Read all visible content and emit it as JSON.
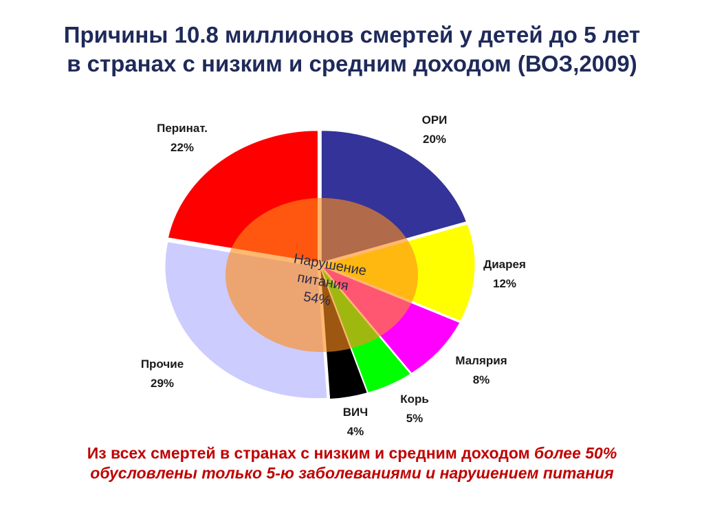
{
  "title": {
    "line1": "Причины 10.8 миллионов смертей у детей до 5 лет",
    "line2": "в странах с низким и средним доходом (ВОЗ,2009)"
  },
  "chart_data": {
    "type": "pie",
    "slices": [
      {
        "name": "ОРИ",
        "percent_label": "20%",
        "value": 20,
        "color": "#333399"
      },
      {
        "name": "Диарея",
        "percent_label": "12%",
        "value": 12,
        "color": "#ffff00"
      },
      {
        "name": "Малярия",
        "percent_label": "8%",
        "value": 8,
        "color": "#ff00ff"
      },
      {
        "name": "Корь",
        "percent_label": "5%",
        "value": 5,
        "color": "#00ff00"
      },
      {
        "name": "ВИЧ",
        "percent_label": "4%",
        "value": 4,
        "color": "#000000"
      },
      {
        "name": "Прочие",
        "percent_label": "29%",
        "value": 29,
        "color": "#ccccff"
      },
      {
        "name": "Перинат.",
        "percent_label": "22%",
        "value": 22,
        "color": "#ff0000"
      }
    ],
    "overlay": {
      "label_line1": "Нарушение",
      "label_line2": "питания",
      "label_value": "54%",
      "value": 54,
      "color": "#ff8c1a"
    }
  },
  "footnote": {
    "upright": "Из всех смертей в странах с низким и средним доходом",
    "italic": " более 50% обусловлены только 5-ю заболеваниями и нарушением питания"
  }
}
